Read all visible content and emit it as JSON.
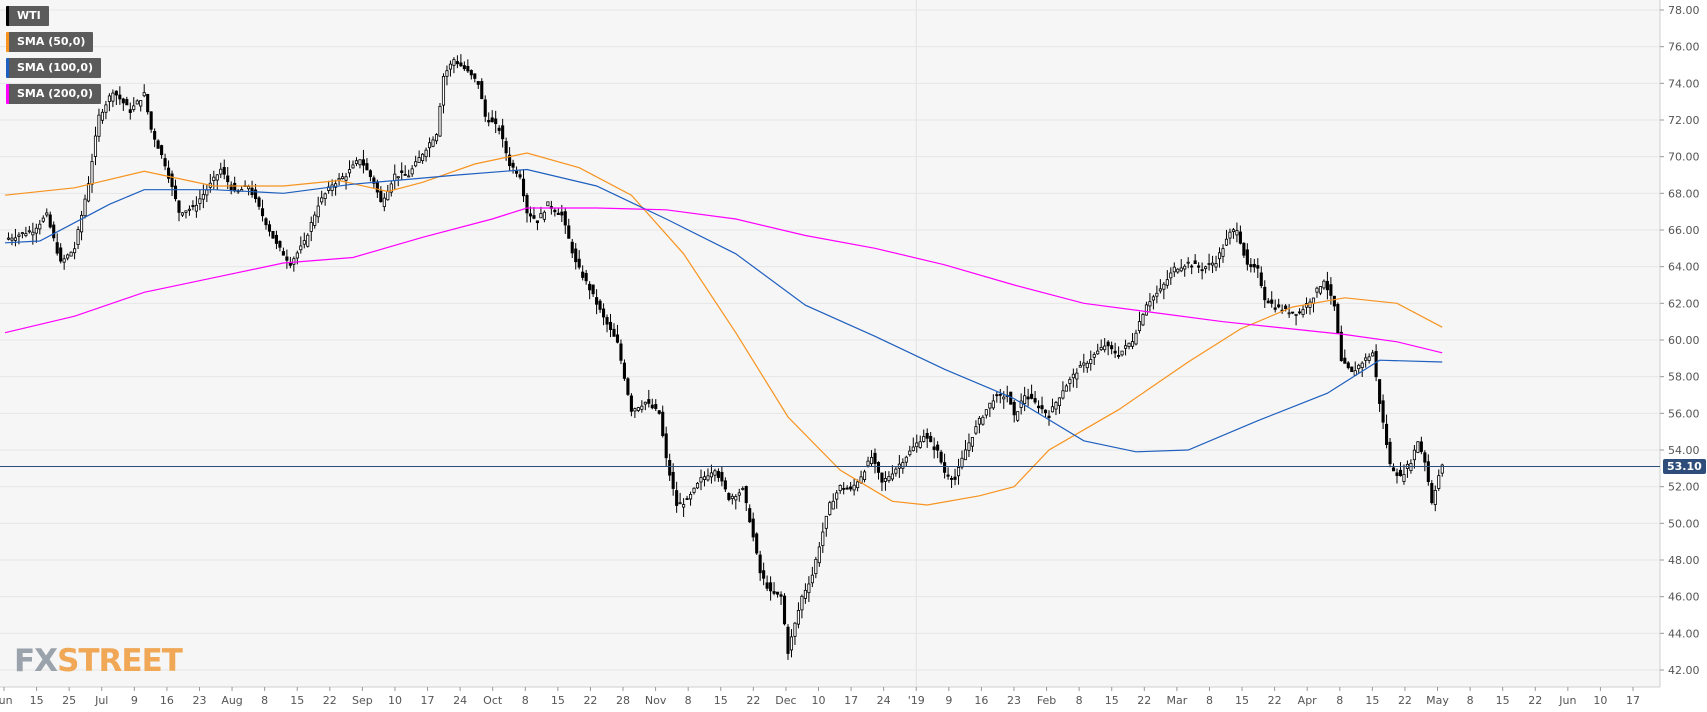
{
  "legend": [
    {
      "label": "WTI",
      "color": "#000000"
    },
    {
      "label": "SMA (50,0)",
      "color": "#f7931e"
    },
    {
      "label": "SMA (100,0)",
      "color": "#1f5fbf"
    },
    {
      "label": "SMA (200,0)",
      "color": "#ff00ff"
    }
  ],
  "logo": {
    "part1": "FX",
    "part2": "STREET"
  },
  "current_price": {
    "label": "53.10",
    "value": 53.1
  },
  "chart_data": {
    "type": "candlestick",
    "symbol": "WTI",
    "ylim": [
      41.5,
      78.4
    ],
    "yticks": [
      "42.00",
      "44.00",
      "46.00",
      "48.00",
      "50.00",
      "52.00",
      "54.00",
      "56.00",
      "58.00",
      "60.00",
      "62.00",
      "64.00",
      "66.00",
      "68.00",
      "70.00",
      "72.00",
      "74.00",
      "76.00",
      "78.00"
    ],
    "xticks": [
      "Jun",
      "15",
      "25",
      "Jul",
      "9",
      "16",
      "23",
      "Aug",
      "8",
      "15",
      "22",
      "Sep",
      "10",
      "17",
      "24",
      "Oct",
      "8",
      "15",
      "22",
      "28",
      "Nov",
      "8",
      "15",
      "22",
      "Dec",
      "10",
      "17",
      "24",
      "'19",
      "9",
      "16",
      "23",
      "Feb",
      "8",
      "15",
      "22",
      "Mar",
      "8",
      "15",
      "22",
      "Apr",
      "8",
      "15",
      "22",
      "May",
      "8",
      "15",
      "22",
      "Jun",
      "10",
      "17"
    ],
    "close_path": [
      [
        0,
        65.5
      ],
      [
        8,
        66.0
      ],
      [
        12,
        66.8
      ],
      [
        16,
        64.2
      ],
      [
        20,
        65.0
      ],
      [
        24,
        68.6
      ],
      [
        27,
        72.2
      ],
      [
        31,
        73.6
      ],
      [
        36,
        72.5
      ],
      [
        40,
        73.4
      ],
      [
        42,
        71.5
      ],
      [
        46,
        69.6
      ],
      [
        50,
        67.0
      ],
      [
        54,
        67.2
      ],
      [
        58,
        68.2
      ],
      [
        62,
        69.3
      ],
      [
        66,
        68.0
      ],
      [
        70,
        68.4
      ],
      [
        74,
        66.8
      ],
      [
        78,
        65.2
      ],
      [
        82,
        64.2
      ],
      [
        86,
        65.3
      ],
      [
        90,
        67.4
      ],
      [
        94,
        68.5
      ],
      [
        98,
        69.0
      ],
      [
        102,
        69.9
      ],
      [
        106,
        68.6
      ],
      [
        108,
        67.5
      ],
      [
        112,
        69.0
      ],
      [
        116,
        69.0
      ],
      [
        120,
        70.2
      ],
      [
        124,
        71.3
      ],
      [
        126,
        74.4
      ],
      [
        129,
        75.3
      ],
      [
        132,
        74.8
      ],
      [
        136,
        74.0
      ],
      [
        138,
        72.2
      ],
      [
        142,
        71.5
      ],
      [
        145,
        69.6
      ],
      [
        148,
        69.0
      ],
      [
        150,
        67.0
      ],
      [
        153,
        66.5
      ],
      [
        156,
        67.4
      ],
      [
        160,
        66.8
      ],
      [
        164,
        64.2
      ],
      [
        168,
        62.8
      ],
      [
        172,
        61.2
      ],
      [
        176,
        59.8
      ],
      [
        180,
        56.2
      ],
      [
        184,
        56.6
      ],
      [
        188,
        56.0
      ],
      [
        190,
        53.5
      ],
      [
        193,
        51.0
      ],
      [
        196,
        51.2
      ],
      [
        200,
        52.4
      ],
      [
        204,
        53.0
      ],
      [
        208,
        51.4
      ],
      [
        212,
        51.8
      ],
      [
        214,
        50.2
      ],
      [
        217,
        47.3
      ],
      [
        220,
        46.2
      ],
      [
        223,
        46.0
      ],
      [
        225,
        43.0
      ],
      [
        229,
        46.0
      ],
      [
        232,
        47.2
      ],
      [
        234,
        48.8
      ],
      [
        237,
        51.0
      ],
      [
        240,
        52.0
      ],
      [
        243,
        51.8
      ],
      [
        246,
        52.6
      ],
      [
        249,
        53.6
      ],
      [
        252,
        52.2
      ],
      [
        256,
        53.0
      ],
      [
        260,
        53.9
      ],
      [
        264,
        54.8
      ],
      [
        268,
        53.9
      ],
      [
        270,
        52.8
      ],
      [
        273,
        52.4
      ],
      [
        276,
        54.0
      ],
      [
        280,
        55.6
      ],
      [
        284,
        56.8
      ],
      [
        288,
        57.0
      ],
      [
        290,
        55.8
      ],
      [
        293,
        57.0
      ],
      [
        297,
        56.4
      ],
      [
        300,
        55.9
      ],
      [
        304,
        57.3
      ],
      [
        308,
        58.3
      ],
      [
        312,
        59.0
      ],
      [
        316,
        59.7
      ],
      [
        320,
        59.2
      ],
      [
        324,
        60.0
      ],
      [
        328,
        62.0
      ],
      [
        332,
        62.7
      ],
      [
        336,
        63.9
      ],
      [
        340,
        64.2
      ],
      [
        344,
        63.9
      ],
      [
        348,
        64.3
      ],
      [
        352,
        65.8
      ],
      [
        354,
        66.1
      ],
      [
        357,
        64.0
      ],
      [
        360,
        63.8
      ],
      [
        362,
        62.3
      ],
      [
        365,
        61.8
      ],
      [
        368,
        61.6
      ],
      [
        372,
        61.5
      ],
      [
        376,
        62.4
      ],
      [
        379,
        63.3
      ],
      [
        382,
        61.8
      ],
      [
        384,
        58.8
      ],
      [
        387,
        58.2
      ],
      [
        390,
        58.8
      ],
      [
        393,
        59.3
      ],
      [
        395,
        56.6
      ],
      [
        398,
        53.2
      ],
      [
        401,
        52.5
      ],
      [
        404,
        53.4
      ],
      [
        406,
        54.5
      ],
      [
        408,
        53.4
      ],
      [
        410,
        51.2
      ],
      [
        412,
        52.6
      ],
      [
        413,
        53.1
      ]
    ],
    "sma50": [
      [
        0,
        67.9
      ],
      [
        20,
        68.3
      ],
      [
        40,
        69.2
      ],
      [
        60,
        68.4
      ],
      [
        80,
        68.4
      ],
      [
        96,
        68.7
      ],
      [
        110,
        68.1
      ],
      [
        120,
        68.6
      ],
      [
        135,
        69.6
      ],
      [
        150,
        70.2
      ],
      [
        165,
        69.4
      ],
      [
        180,
        67.9
      ],
      [
        195,
        64.7
      ],
      [
        210,
        60.4
      ],
      [
        225,
        55.8
      ],
      [
        240,
        52.9
      ],
      [
        255,
        51.2
      ],
      [
        265,
        51.0
      ],
      [
        280,
        51.5
      ],
      [
        290,
        52.0
      ],
      [
        300,
        54.0
      ],
      [
        320,
        56.2
      ],
      [
        340,
        58.8
      ],
      [
        355,
        60.6
      ],
      [
        370,
        61.8
      ],
      [
        385,
        62.3
      ],
      [
        400,
        62.0
      ],
      [
        413,
        60.7
      ]
    ],
    "sma100": [
      [
        0,
        65.3
      ],
      [
        10,
        65.4
      ],
      [
        20,
        66.4
      ],
      [
        30,
        67.4
      ],
      [
        40,
        68.2
      ],
      [
        60,
        68.2
      ],
      [
        80,
        68.0
      ],
      [
        100,
        68.5
      ],
      [
        130,
        69.0
      ],
      [
        150,
        69.3
      ],
      [
        170,
        68.4
      ],
      [
        190,
        66.6
      ],
      [
        210,
        64.7
      ],
      [
        230,
        61.9
      ],
      [
        250,
        60.2
      ],
      [
        270,
        58.4
      ],
      [
        290,
        56.8
      ],
      [
        310,
        54.5
      ],
      [
        325,
        53.9
      ],
      [
        340,
        54.0
      ],
      [
        360,
        55.6
      ],
      [
        380,
        57.1
      ],
      [
        395,
        58.9
      ],
      [
        413,
        58.8
      ]
    ],
    "sma200": [
      [
        0,
        60.4
      ],
      [
        20,
        61.3
      ],
      [
        40,
        62.6
      ],
      [
        60,
        63.4
      ],
      [
        80,
        64.2
      ],
      [
        100,
        64.5
      ],
      [
        120,
        65.6
      ],
      [
        140,
        66.6
      ],
      [
        150,
        67.2
      ],
      [
        170,
        67.2
      ],
      [
        190,
        67.1
      ],
      [
        210,
        66.6
      ],
      [
        230,
        65.7
      ],
      [
        250,
        65.0
      ],
      [
        270,
        64.1
      ],
      [
        290,
        63.0
      ],
      [
        310,
        62.0
      ],
      [
        330,
        61.5
      ],
      [
        350,
        61.0
      ],
      [
        370,
        60.6
      ],
      [
        385,
        60.3
      ],
      [
        400,
        59.9
      ],
      [
        413,
        59.3
      ]
    ]
  }
}
